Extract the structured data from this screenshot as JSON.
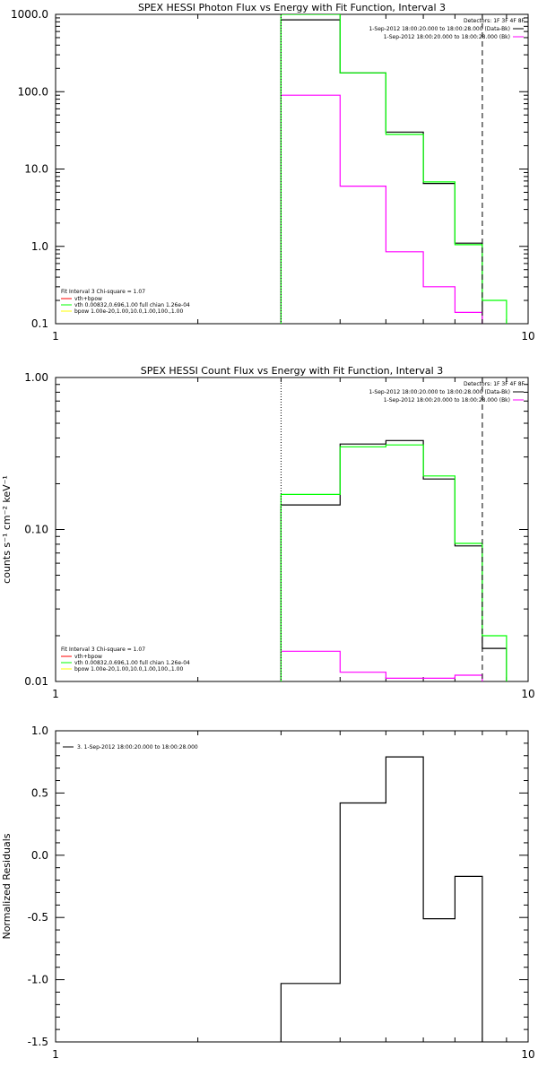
{
  "colors": {
    "data": "#000000",
    "background": "#ff00ff",
    "total": "#00ff00",
    "vth": "#00ff00",
    "bpow": "#ffff00"
  },
  "chart_data": [
    {
      "type": "line",
      "title": "SPEX HESSI Photon Flux vs Energy with Fit Function, Interval 3",
      "xlabel": "",
      "ylabel": "",
      "xscale": "log",
      "yscale": "log",
      "xlim": [
        1,
        10
      ],
      "ylim": [
        0.1,
        1000
      ],
      "xticks": [
        "1",
        "10"
      ],
      "yticks": [
        "0.1",
        "1.0",
        "10.0",
        "100.0",
        "1000.0"
      ],
      "vlines": [
        {
          "x": 3.0,
          "style": "dotted",
          "color": "#000000"
        },
        {
          "x": 8.0,
          "style": "dashed",
          "color": "#000000"
        }
      ],
      "header": {
        "detectors": "Detectors: 1F 3F 4F 8F",
        "entries": [
          {
            "text": "1-Sep-2012 18:00:20.000 to 18:00:28.000 (Data-Bk)",
            "color": "#000000"
          },
          {
            "text": "1-Sep-2012 18:00:20.000 to 18:00:28.000 (Bk)",
            "color": "#ff00ff"
          }
        ]
      },
      "fit_legend": {
        "title": "Fit Interval 3   Chi-square = 1.07",
        "entries": [
          {
            "text": "vth+bpow",
            "color": "#ff0000"
          },
          {
            "text": "vth 0.00832,0.696,1.00  full chian 1.26e-04",
            "color": "#00ff00"
          },
          {
            "text": "bpow 1.00e-20,1.00,10.0,1.00,100.,1.00",
            "color": "#ffff00"
          }
        ]
      },
      "series": [
        {
          "name": "Data-Bk",
          "color": "#000000",
          "edges": [
            3,
            4,
            5,
            6,
            7,
            8
          ],
          "values": [
            850,
            175,
            30,
            6.5,
            1.1
          ]
        },
        {
          "name": "Bk",
          "color": "#ff00ff",
          "edges": [
            3,
            4,
            5,
            6,
            7,
            8
          ],
          "values": [
            90,
            6,
            0.85,
            0.3,
            0.14
          ]
        },
        {
          "name": "vth+bpow",
          "color": "#00ff00",
          "edges": [
            3,
            4,
            5,
            6,
            7,
            8,
            9
          ],
          "values": [
            1000,
            175,
            28,
            6.8,
            1.05,
            0.2
          ]
        }
      ]
    },
    {
      "type": "line",
      "title": "SPEX HESSI Count Flux vs Energy with Fit Function, Interval 3",
      "xlabel": "",
      "ylabel": "counts s⁻¹ cm⁻² keV⁻¹",
      "xscale": "log",
      "yscale": "log",
      "xlim": [
        1,
        10
      ],
      "ylim": [
        0.01,
        1
      ],
      "xticks": [
        "1",
        "10"
      ],
      "yticks": [
        "0.01",
        "0.10",
        "1.00"
      ],
      "vlines": [
        {
          "x": 3.0,
          "style": "dotted",
          "color": "#000000"
        },
        {
          "x": 8.0,
          "style": "dashed",
          "color": "#000000"
        }
      ],
      "header": {
        "detectors": "Detectors: 1F 3F 4F 8F",
        "entries": [
          {
            "text": "1-Sep-2012 18:00:20.000 to 18:00:28.000 (Data-Bk)",
            "color": "#000000"
          },
          {
            "text": "1-Sep-2012 18:00:20.000 to 18:00:28.000 (Bk)",
            "color": "#ff00ff"
          }
        ]
      },
      "fit_legend": {
        "title": "Fit Interval 3   Chi-square = 1.07",
        "entries": [
          {
            "text": "vth+bpow",
            "color": "#ff0000"
          },
          {
            "text": "vth 0.00832,0.696,1.00  full chian 1.26e-04",
            "color": "#00ff00"
          },
          {
            "text": "bpow 1.00e-20,1.00,10.0,1.00,100.,1.00",
            "color": "#ffff00"
          }
        ]
      },
      "series": [
        {
          "name": "Data-Bk",
          "color": "#000000",
          "edges": [
            3,
            4,
            5,
            6,
            7,
            8,
            9
          ],
          "values": [
            0.145,
            0.365,
            0.385,
            0.215,
            0.078,
            0.0165
          ]
        },
        {
          "name": "Bk",
          "color": "#ff00ff",
          "edges": [
            3,
            4,
            5,
            6,
            7,
            8
          ],
          "values": [
            0.0158,
            0.0115,
            0.0105,
            0.0105,
            0.011
          ]
        },
        {
          "name": "vth+bpow",
          "color": "#00ff00",
          "edges": [
            3,
            4,
            5,
            6,
            7,
            8,
            9
          ],
          "values": [
            0.17,
            0.35,
            0.36,
            0.225,
            0.081,
            0.02
          ]
        }
      ]
    },
    {
      "type": "line",
      "title": "",
      "xlabel": "",
      "ylabel": "Normalized Residuals",
      "xscale": "log",
      "yscale": "linear",
      "xlim": [
        1,
        10
      ],
      "ylim": [
        -1.5,
        1.0
      ],
      "xticks": [
        "1",
        "10"
      ],
      "yticks": [
        "-1.5",
        "-1.0",
        "-0.5",
        "0.0",
        "0.5",
        "1.0"
      ],
      "vlines": [],
      "legend": [
        {
          "text": "3.  1-Sep-2012 18:00:20.000 to 18:00:28.000",
          "color": "#000000"
        }
      ],
      "series": [
        {
          "name": "3.  1-Sep-2012 18:00:20.000 to 18:00:28.000",
          "color": "#000000",
          "edges": [
            3,
            4,
            5,
            6,
            7,
            8
          ],
          "values": [
            -1.03,
            0.42,
            0.79,
            -0.51,
            -0.17
          ]
        }
      ]
    }
  ]
}
